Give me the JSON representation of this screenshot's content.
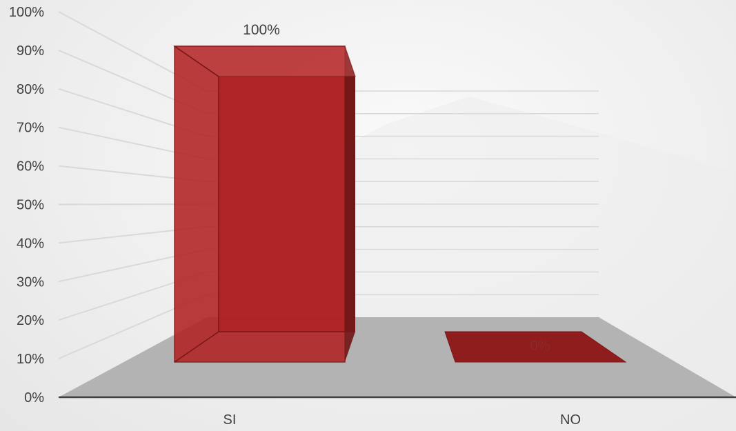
{
  "chart_data": {
    "type": "bar",
    "style": "3d-column",
    "categories": [
      "SI",
      "NO"
    ],
    "values": [
      100,
      0
    ],
    "data_labels": [
      "100%",
      "0%"
    ],
    "ylim": [
      0,
      100
    ],
    "yticks": [
      "0%",
      "10%",
      "20%",
      "30%",
      "40%",
      "50%",
      "60%",
      "70%",
      "80%",
      "90%",
      "100%"
    ],
    "grid": true,
    "legend": "none",
    "colors": {
      "bar": "#b22222",
      "floor": "#b3b3b3",
      "axis": "#404040",
      "grid": "#d9d9d9"
    }
  }
}
